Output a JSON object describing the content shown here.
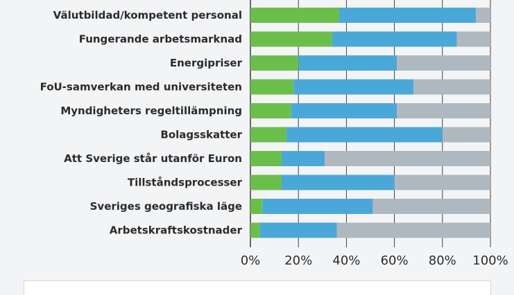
{
  "colors": {
    "background": "#f3f4f6",
    "grid": "#2b2b2b",
    "text": "#2b2b2b",
    "series": [
      "#6abf4b",
      "#4aa8d8",
      "#b0b8bf"
    ]
  },
  "chart_data": {
    "type": "bar",
    "orientation": "horizontal",
    "stacked": true,
    "title": "",
    "xlabel": "",
    "ylabel": "",
    "xlim": [
      0,
      100
    ],
    "x_ticks": [
      "0%",
      "20%",
      "40%",
      "60%",
      "80%",
      "100%"
    ],
    "grid": "vertical",
    "categories": [
      "Välutbildad/kompetent personal",
      "Fungerande arbetsmarknad",
      "Energipriser",
      "FoU-samverkan med universiteten",
      "Myndigheters regeltillämpning",
      "Bolagsskatter",
      "Att Sverige står utanför Euron",
      "Tillståndsprocesser",
      "Sveriges geografiska läge",
      "Arbetskraftskostnader"
    ],
    "series": [
      {
        "values": [
          37,
          34,
          20,
          18,
          17,
          15,
          13,
          13,
          5,
          4
        ]
      },
      {
        "values": [
          57,
          52,
          41,
          50,
          44,
          65,
          18,
          47,
          46,
          32
        ]
      },
      {
        "values": [
          6,
          14,
          39,
          32,
          39,
          20,
          69,
          40,
          49,
          64
        ]
      }
    ]
  }
}
